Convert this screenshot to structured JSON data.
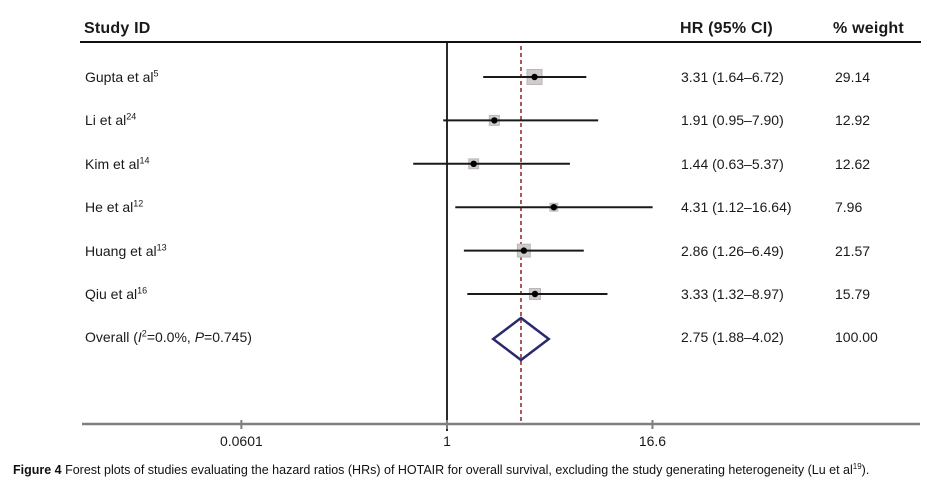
{
  "header": {
    "study_id": "Study ID",
    "hr_ci": "HR (95% CI)",
    "weight": "% weight"
  },
  "chart_data": {
    "type": "forest",
    "x_axis": {
      "scale": "log",
      "ticks": [
        0.0601,
        1,
        16.6
      ],
      "tick_labels": [
        "0.0601",
        "1",
        "16.6"
      ],
      "null_line_value": 1,
      "overall_dashed_value": 2.75
    },
    "studies": [
      {
        "label": "Gupta et al",
        "ref": "5",
        "hr": 3.31,
        "ci_low": 1.64,
        "ci_high": 6.72,
        "weight": 29.14,
        "hr_text": "3.31 (1.64–6.72)",
        "weight_text": "29.14"
      },
      {
        "label": "Li et al",
        "ref": "24",
        "hr": 1.91,
        "ci_low": 0.95,
        "ci_high": 7.9,
        "weight": 12.92,
        "hr_text": "1.91 (0.95–7.90)",
        "weight_text": "12.92"
      },
      {
        "label": "Kim et al",
        "ref": "14",
        "hr": 1.44,
        "ci_low": 0.63,
        "ci_high": 5.37,
        "weight": 12.62,
        "hr_text": "1.44 (0.63–5.37)",
        "weight_text": "12.62"
      },
      {
        "label": "He et al",
        "ref": "12",
        "hr": 4.31,
        "ci_low": 1.12,
        "ci_high": 16.64,
        "weight": 7.96,
        "hr_text": "4.31 (1.12–16.64)",
        "weight_text": "7.96"
      },
      {
        "label": "Huang et al",
        "ref": "13",
        "hr": 2.86,
        "ci_low": 1.26,
        "ci_high": 6.49,
        "weight": 21.57,
        "hr_text": "2.86 (1.26–6.49)",
        "weight_text": "21.57"
      },
      {
        "label": "Qiu et al",
        "ref": "16",
        "hr": 3.33,
        "ci_low": 1.32,
        "ci_high": 8.97,
        "weight": 15.79,
        "hr_text": "3.33 (1.32–8.97)",
        "weight_text": "15.79"
      }
    ],
    "overall": {
      "label_parts": {
        "prefix": "Overall (",
        "i": "I",
        "i_sup": "2",
        "mid": "=0.0%, ",
        "p": "P",
        "suffix": "=0.745)"
      },
      "hr": 2.75,
      "ci_low": 1.88,
      "ci_high": 4.02,
      "hr_text": "2.75 (1.88–4.02)",
      "weight_text": "100.00"
    }
  },
  "caption": {
    "figure_label": "Figure 4",
    "body": " Forest plots of studies evaluating the hazard ratios (HRs) of HOTAIR for overall survival, excluding the study generating heterogeneity (Lu et al",
    "ref": "19",
    "tail": ")."
  },
  "colors": {
    "line": "#1a1a1a",
    "axis": "#7f7f7f",
    "dashed_line": "#aa5757",
    "diamond": "#29296e",
    "box_fill": "#d0cbcb",
    "box_border": "#bcb7b7"
  }
}
